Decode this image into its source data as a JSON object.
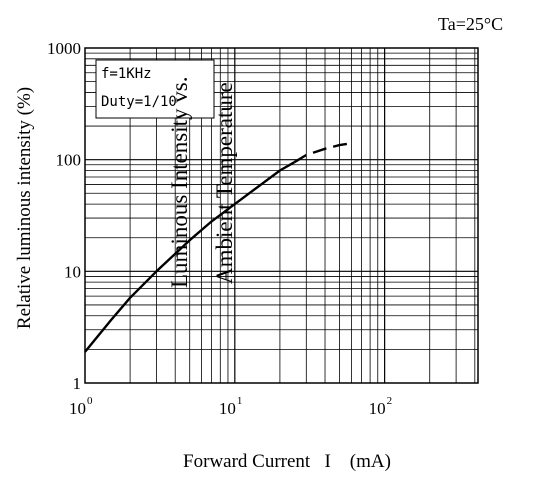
{
  "chart_data": {
    "type": "line",
    "condition": "Ta=25°C",
    "title_lines": [
      "Luminous Intensity vs.",
      "Ambient Temperature"
    ],
    "xlabel": "Forward Current   I    (mA)",
    "ylabel": "Relative luminous intensity  (%)",
    "legend_lines": [
      "f=1KHz",
      "Duty=1/10"
    ],
    "x_scale": "log",
    "y_scale": "log",
    "xlim": [
      1,
      420
    ],
    "ylim": [
      1,
      1000
    ],
    "x_ticks": [
      {
        "value": 1,
        "base": "10",
        "exp": "0"
      },
      {
        "value": 10,
        "base": "10",
        "exp": "1"
      },
      {
        "value": 100,
        "base": "10",
        "exp": "2"
      }
    ],
    "y_ticks": [
      {
        "value": 1,
        "label": "1"
      },
      {
        "value": 10,
        "label": "10"
      },
      {
        "value": 100,
        "label": "100"
      },
      {
        "value": 1000,
        "label": "1000"
      }
    ],
    "grid": true,
    "series": [
      {
        "style": "solid",
        "x": [
          1,
          1.5,
          2,
          3,
          5,
          7,
          10,
          15,
          20,
          25
        ],
        "y": [
          1.9,
          3.7,
          5.8,
          10,
          19,
          28,
          40,
          60,
          80,
          95
        ]
      },
      {
        "style": "dashed",
        "x": [
          25,
          30,
          40,
          50,
          60
        ],
        "y": [
          95,
          110,
          125,
          135,
          140
        ]
      }
    ]
  }
}
